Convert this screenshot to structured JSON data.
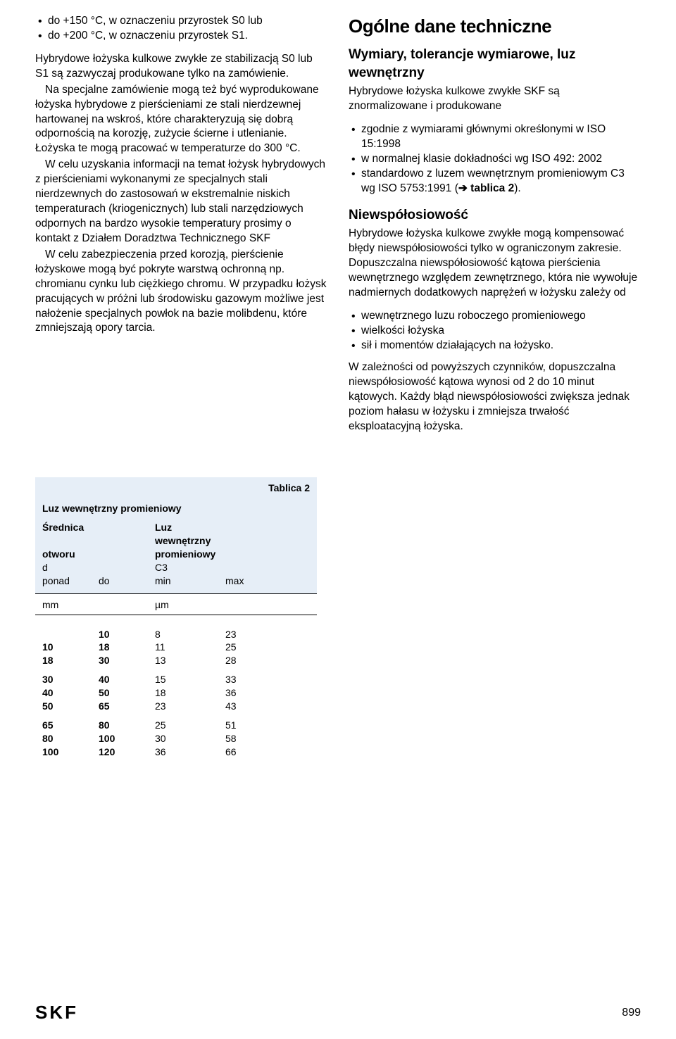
{
  "left": {
    "bullets_top": [
      "do +150 °C, w oznaczeniu przyrostek S0 lub",
      "do +200 °C, w oznaczeniu przyrostek S1."
    ],
    "p1": "Hybrydowe łożyska kulkowe zwykłe ze stabilizacją S0 lub S1 są zazwyczaj produkowane tylko na zamówienie.",
    "p2": "Na specjalne zamówienie mogą też być wyprodukowane łożyska hybrydowe z pierścieniami ze stali nierdzewnej hartowanej na wskroś, które charakteryzują się dobrą odpornością na korozję, zużycie ścierne i utlenianie. Łożyska te mogą pracować w temperaturze do 300 °C.",
    "p3": "W celu uzyskania informacji na temat łożysk hybrydowych z pierścieniami wykonanymi ze specjalnych stali nierdzewnych do zastosowań w ekstremalnie niskich temperaturach (kriogenicznych) lub stali narzędziowych odpornych na bardzo wysokie temperatury prosimy o kontakt z Działem Doradztwa Technicznego SKF",
    "p4": "W celu zabezpieczenia przed korozją, pierścienie łożyskowe mogą być pokryte warstwą ochronną np. chromianu cynku lub ciężkiego chromu. W przypadku łożysk pracujących w próżni lub środowisku gazowym możliwe jest nałożenie specjalnych powłok na bazie molibdenu, które zmniejszają opory tarcia."
  },
  "right": {
    "h2": "Ogólne dane techniczne",
    "h3a": "Wymiary, tolerancje wymiarowe, luz wewnętrzny",
    "p_intro": "Hybrydowe łożyska kulkowe zwykłe SKF są znormalizowane i produkowane",
    "bullets_a": [
      "zgodnie z wymiarami głównymi określonymi w ISO 15:1998",
      "w normalnej klasie dokładności wg ISO 492: 2002"
    ],
    "bullet_a3_pre": "standardowo z luzem wewnętrznym promieniowym C3 wg ISO 5753:1991 (",
    "bullet_a3_bold": "tablica 2",
    "bullet_a3_post": ").",
    "h3b": "Niewspółosiowość",
    "pb1": "Hybrydowe łożyska kulkowe zwykłe mogą kompensować błędy niewspółosiowości tylko w ograniczonym zakresie. Dopuszczalna niewspółosiowość kątowa pierścienia wewnętrznego względem zewnętrznego, która nie wywołuje nadmiernych dodatkowych naprężeń w łożysku zależy od",
    "bullets_b": [
      "wewnętrznego luzu roboczego promieniowego",
      "wielkości łożyska",
      "sił i momentów działających na łożysko."
    ],
    "pb2": "W zależności od powyższych czynników, dopuszczalna niewspółosiowość kątowa wynosi od 2 do 10 minut kątowych. Każdy błąd niewspółosiowości zwiększa jednak poziom hałasu w łożysku i zmniejsza trwałość eksploatacyjną łożyska."
  },
  "table": {
    "label": "Tablica 2",
    "title": "Luz wewnętrzny promieniowy",
    "header_left_1": "Średnica",
    "header_left_2": "otworu",
    "header_left_3": "d",
    "header_right_1": "Luz wewnętrzny",
    "header_right_2": "promieniowy",
    "header_right_3": "C3",
    "sub_ponad": "ponad",
    "sub_do": "do",
    "sub_min": "min",
    "sub_max": "max",
    "unit_mm": "mm",
    "unit_um": "µm",
    "groups": [
      [
        [
          "",
          "10",
          "8",
          "23"
        ],
        [
          "10",
          "18",
          "11",
          "25"
        ],
        [
          "18",
          "30",
          "13",
          "28"
        ]
      ],
      [
        [
          "30",
          "40",
          "15",
          "33"
        ],
        [
          "40",
          "50",
          "18",
          "36"
        ],
        [
          "50",
          "65",
          "23",
          "43"
        ]
      ],
      [
        [
          "65",
          "80",
          "25",
          "51"
        ],
        [
          "80",
          "100",
          "30",
          "58"
        ],
        [
          "100",
          "120",
          "36",
          "66"
        ]
      ]
    ]
  },
  "footer": {
    "logo": "SKF",
    "page": "899"
  }
}
